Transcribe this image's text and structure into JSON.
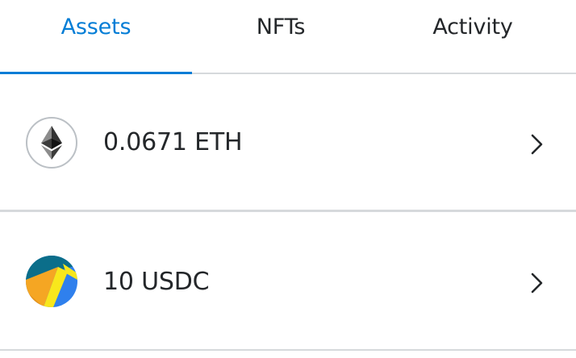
{
  "tabs": [
    {
      "label": "Assets",
      "active": true
    },
    {
      "label": "NFTs",
      "active": false
    },
    {
      "label": "Activity",
      "active": false
    }
  ],
  "accent_color": "#037dd6",
  "assets": [
    {
      "amount": "0.0671 ETH",
      "icon": "ethereum-icon"
    },
    {
      "amount": "10 USDC",
      "icon": "usdc-icon"
    }
  ]
}
